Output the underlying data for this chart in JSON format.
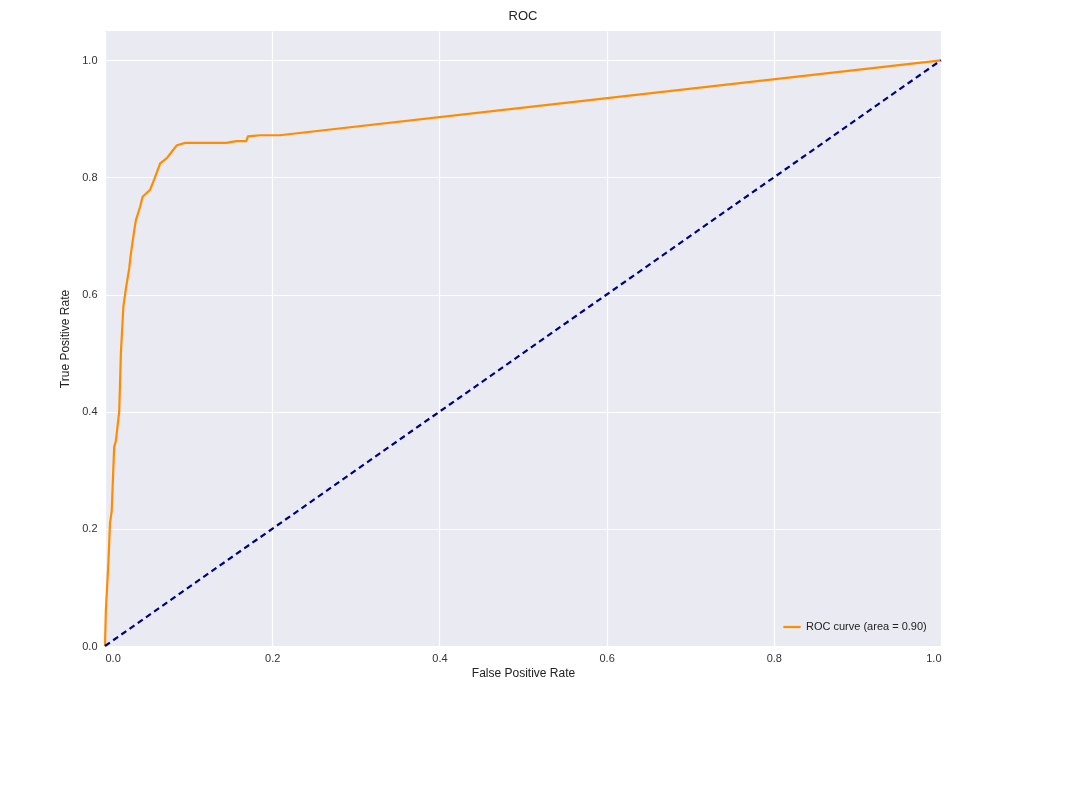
{
  "chart_data": {
    "type": "line",
    "title": "ROC",
    "xlabel": "False Positive Rate",
    "ylabel": "True Positive Rate",
    "xlim": [
      0,
      1
    ],
    "ylim": [
      0,
      1.05
    ],
    "xticks": [
      {
        "value": 0,
        "label": "0.0"
      },
      0.2,
      0.4,
      0.6,
      0.8,
      {
        "value": 1,
        "label": "1.0"
      }
    ],
    "yticks": [
      {
        "value": 0,
        "label": "0.0"
      },
      0.2,
      0.4,
      0.6,
      0.8,
      {
        "value": 1,
        "label": "1.0"
      }
    ],
    "grid": true,
    "legend": "bottom right",
    "series": [
      {
        "name": "ROC curve (area = 0.90)",
        "color": "#ff8c00",
        "line_style": "solid",
        "x": [
          0,
          0.001,
          0.004,
          0.006,
          0.008,
          0.011,
          0.013,
          0.017,
          0.019,
          0.022,
          0.025,
          0.029,
          0.031,
          0.035,
          0.037,
          0.042,
          0.045,
          0.054,
          0.059,
          0.066,
          0.074,
          0.081,
          0.086,
          0.096,
          0.145,
          0.157,
          0.169,
          0.171,
          0.185,
          0.209,
          1
        ],
        "values": [
          0,
          0.06,
          0.14,
          0.21,
          0.23,
          0.34,
          0.35,
          0.4,
          0.5,
          0.58,
          0.61,
          0.645,
          0.67,
          0.71,
          0.727,
          0.75,
          0.767,
          0.779,
          0.797,
          0.824,
          0.833,
          0.846,
          0.855,
          0.859,
          0.859,
          0.862,
          0.862,
          0.87,
          0.872,
          0.872,
          1
        ]
      },
      {
        "color": "#000080",
        "line_style": "dashed",
        "x": [
          0,
          1
        ],
        "values": [
          0,
          1
        ]
      }
    ]
  }
}
